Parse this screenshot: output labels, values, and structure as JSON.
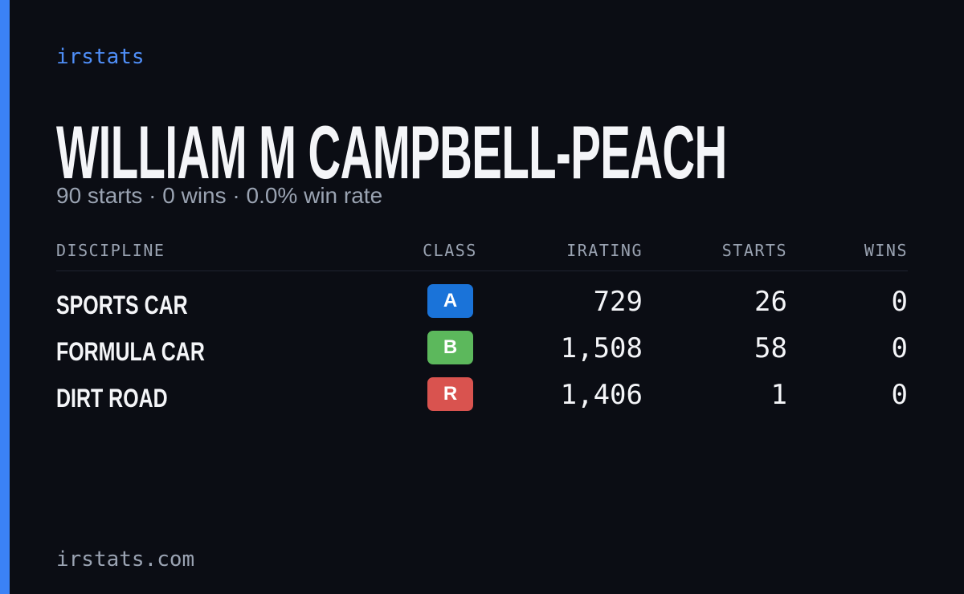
{
  "brand": "irstats",
  "header": {
    "title": "WILLIAM M CAMPBELL-PEACH",
    "subtitle": "90 starts · 0 wins · 0.0% win rate"
  },
  "table": {
    "columns": [
      "DISCIPLINE",
      "CLASS",
      "IRATING",
      "STARTS",
      "WINS"
    ],
    "rows": [
      [
        "SPORTS CAR",
        "A",
        "729",
        "26",
        "0"
      ],
      [
        "FORMULA CAR",
        "B",
        "1,508",
        "58",
        "0"
      ],
      [
        "DIRT ROAD",
        "R",
        "1,406",
        "1",
        "0"
      ]
    ]
  },
  "footer": "irstats.com"
}
